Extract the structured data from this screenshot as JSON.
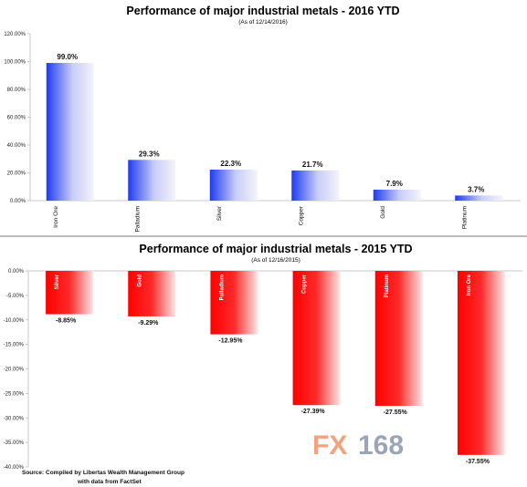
{
  "colors": {
    "top_bar_start": "#1f3bf0",
    "top_bar_end": "#f4f4f8",
    "bottom_bar_start": "#ff0000",
    "bottom_bar_end": "#ffe6e6",
    "axis": "#c8c8c8",
    "divider": "#bdbdbd"
  },
  "chart_data": [
    {
      "type": "bar",
      "title": "Performance of major industrial metals - 2016 YTD",
      "subtitle": "(As of 12/14/2016)",
      "categories": [
        "Iron Ore",
        "Palladium",
        "Silver",
        "Copper",
        "Gold",
        "Platinum"
      ],
      "values": [
        99.0,
        29.3,
        22.3,
        21.7,
        7.9,
        3.7
      ],
      "value_labels": [
        "99.0%",
        "29.3%",
        "22.3%",
        "21.7%",
        "7.9%",
        "3.7%"
      ],
      "ylim": [
        0,
        120
      ],
      "yticks": [
        0,
        20,
        40,
        60,
        80,
        100,
        120
      ],
      "ytick_labels": [
        "0.00%",
        "20.00%",
        "40.00%",
        "60.00%",
        "80.00%",
        "100.00%",
        "120.00%"
      ],
      "grid": false
    },
    {
      "type": "bar",
      "title": "Performance of major industrial metals - 2015 YTD",
      "subtitle": "(As of 12/16/2015)",
      "categories": [
        "Silver",
        "Gold",
        "Palladium",
        "Copper",
        "Platinum",
        "Iron Ore"
      ],
      "values": [
        -8.85,
        -9.29,
        -12.95,
        -27.39,
        -27.55,
        -37.55
      ],
      "value_labels": [
        "-8.85%",
        "-9.29%",
        "-12.95%",
        "-27.39%",
        "-27.55%",
        "-37.55%"
      ],
      "ylim": [
        -40,
        0
      ],
      "yticks": [
        0,
        -5,
        -10,
        -15,
        -20,
        -25,
        -30,
        -35,
        -40
      ],
      "ytick_labels": [
        "0.00%",
        "-5.00%",
        "-10.00%",
        "-15.00%",
        "-20.00%",
        "-25.00%",
        "-30.00%",
        "-35.00%",
        "-40.00%"
      ],
      "grid": false
    }
  ],
  "footer": {
    "source_line1": "Source:  Compiled by Libertas Wealth Management Group",
    "source_line2": "with data from FactSet"
  },
  "watermark": {
    "prefix": "FX",
    "number": "168"
  }
}
